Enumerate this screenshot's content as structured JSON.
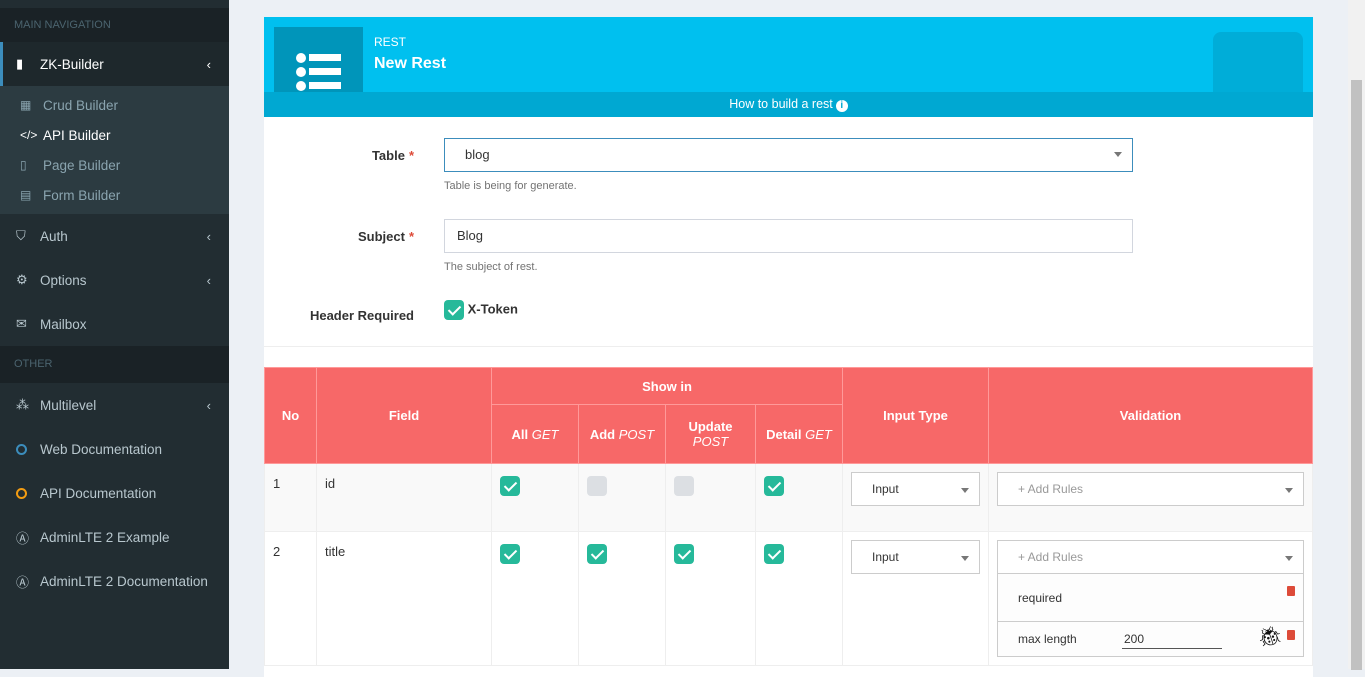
{
  "sidebar": {
    "main_header": "MAIN NAVIGATION",
    "zk_builder": "ZK-Builder",
    "sub": [
      "Crud Builder",
      "API Builder",
      "Page Builder",
      "Form Builder"
    ],
    "auth": "Auth",
    "options": "Options",
    "mailbox": "Mailbox",
    "other_header": "OTHER",
    "multilevel": "Multilevel",
    "web_doc": "Web Documentation",
    "api_doc": "API Documentation",
    "adminlte": "AdminLTE 2 Example",
    "adminlte_doc": "AdminLTE 2 Documentation"
  },
  "header": {
    "small": "REST",
    "title": "New Rest",
    "howto": "How to build a rest",
    "info_icon": "i"
  },
  "form": {
    "table_label": "Table",
    "table_value": "blog",
    "table_help": "Table is being for generate.",
    "subject_label": "Subject",
    "subject_value": "Blog",
    "subject_help": "The subject of rest.",
    "header_label": "Header Required",
    "xtoken": "X-Token",
    "required_mark": "*"
  },
  "table": {
    "headers": {
      "no": "No",
      "field": "Field",
      "show_in": "Show in",
      "all": "All",
      "add": "Add",
      "update": "Update",
      "detail": "Detail",
      "get": "GET",
      "post": "POST",
      "input_type": "Input Type",
      "validation": "Validation"
    },
    "rows": [
      {
        "no": "1",
        "field": "id",
        "all": true,
        "add": false,
        "update": false,
        "detail": true,
        "input_type": "Input",
        "rules_placeholder": "+ Add Rules"
      },
      {
        "no": "2",
        "field": "title",
        "all": true,
        "add": true,
        "update": true,
        "detail": true,
        "input_type": "Input",
        "rules_placeholder": "+ Add Rules",
        "rules": [
          {
            "name": "required"
          },
          {
            "name": "max length",
            "value": "200"
          }
        ]
      }
    ]
  },
  "colors": {
    "sidebar": "#222d32",
    "header": "#00c0ef",
    "table_header": "#f76868",
    "check": "#26b99a"
  }
}
